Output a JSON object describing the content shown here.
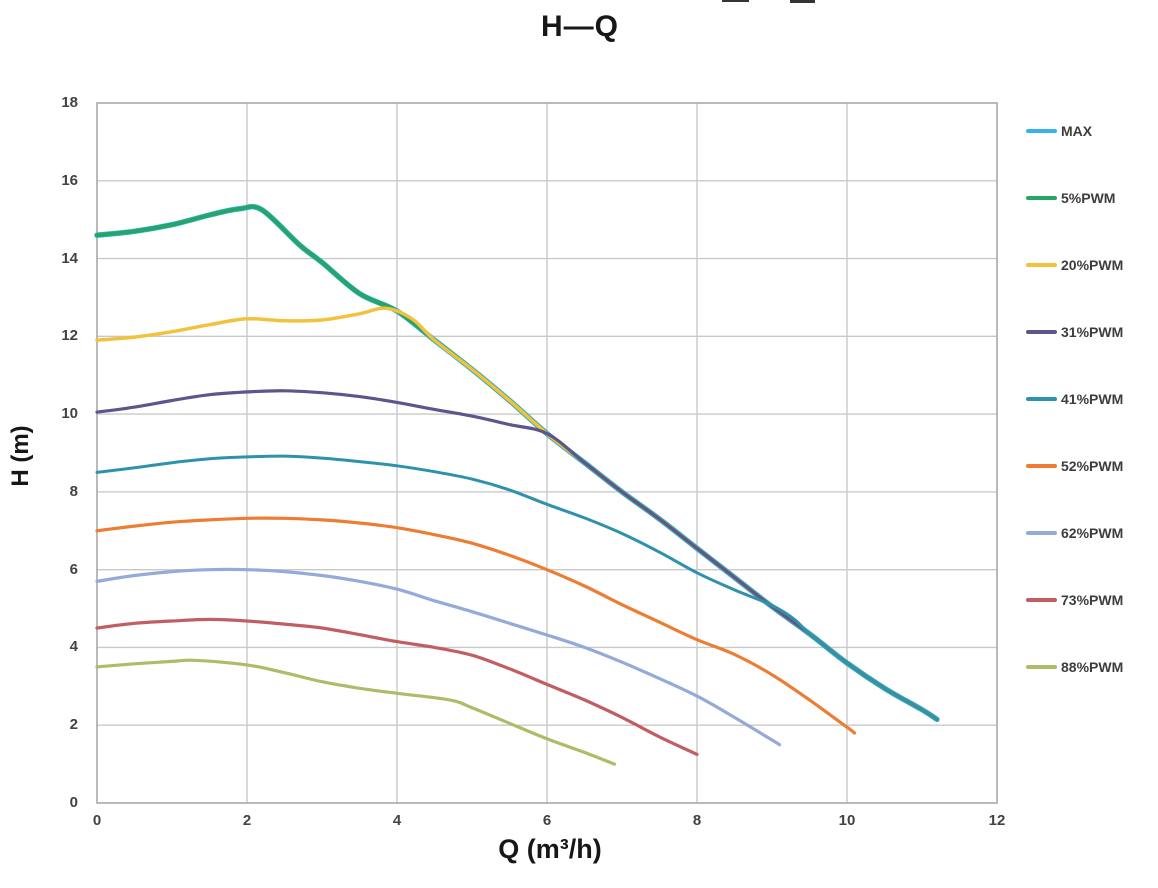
{
  "chart_data": {
    "type": "line",
    "title": "H—Q",
    "xlabel": "Q (m³/h)",
    "ylabel": "H (m)",
    "xlim": [
      0,
      12
    ],
    "ylim": [
      0,
      18
    ],
    "xticks": [
      0,
      2,
      4,
      6,
      8,
      10,
      12
    ],
    "yticks": [
      0,
      2,
      4,
      6,
      8,
      10,
      12,
      14,
      16,
      18
    ],
    "grid": true,
    "legend_position": "right",
    "colors": {
      "grid": "#c9c9c9",
      "border": "#a9a9a9",
      "tick_text": "#424242",
      "title_text": "#171717"
    },
    "series": [
      {
        "name": "MAX",
        "color": "#38b3e8",
        "points": [
          [
            0,
            14.6
          ],
          [
            0.5,
            14.7
          ],
          [
            1,
            14.87
          ],
          [
            1.5,
            15.12
          ],
          [
            1.9,
            15.28
          ],
          [
            2.2,
            15.25
          ],
          [
            2.7,
            14.35
          ],
          [
            3,
            13.9
          ],
          [
            3.5,
            13.1
          ],
          [
            4,
            12.65
          ],
          [
            4.5,
            11.9
          ],
          [
            5,
            11.15
          ],
          [
            5.5,
            10.35
          ],
          [
            6,
            9.5
          ],
          [
            6.5,
            8.75
          ],
          [
            7,
            8.0
          ],
          [
            7.5,
            7.3
          ],
          [
            8,
            6.55
          ],
          [
            8.5,
            5.8
          ],
          [
            9,
            5.05
          ],
          [
            9.5,
            4.35
          ],
          [
            10,
            3.6
          ],
          [
            10.5,
            2.95
          ],
          [
            11,
            2.4
          ],
          [
            11.2,
            2.15
          ]
        ]
      },
      {
        "name": "5%PWM",
        "color": "#26a567",
        "points": [
          [
            0,
            14.6
          ],
          [
            0.5,
            14.7
          ],
          [
            1,
            14.87
          ],
          [
            1.5,
            15.12
          ],
          [
            1.9,
            15.28
          ],
          [
            2.2,
            15.25
          ],
          [
            2.7,
            14.35
          ],
          [
            3,
            13.9
          ],
          [
            3.5,
            13.1
          ],
          [
            4,
            12.65
          ],
          [
            4.5,
            11.9
          ],
          [
            5,
            11.15
          ],
          [
            5.5,
            10.35
          ],
          [
            6,
            9.5
          ],
          [
            6.5,
            8.75
          ],
          [
            7,
            8.0
          ],
          [
            7.5,
            7.3
          ],
          [
            8,
            6.55
          ],
          [
            8.5,
            5.8
          ],
          [
            9,
            5.05
          ],
          [
            9.5,
            4.35
          ],
          [
            10,
            3.6
          ],
          [
            10.5,
            2.95
          ],
          [
            11,
            2.4
          ],
          [
            11.2,
            2.15
          ]
        ]
      },
      {
        "name": "20%PWM",
        "color": "#f2c23e",
        "points": [
          [
            0,
            11.9
          ],
          [
            0.5,
            11.98
          ],
          [
            1,
            12.12
          ],
          [
            1.5,
            12.3
          ],
          [
            2,
            12.45
          ],
          [
            2.5,
            12.4
          ],
          [
            3,
            12.42
          ],
          [
            3.5,
            12.58
          ],
          [
            3.85,
            12.72
          ],
          [
            4.2,
            12.45
          ],
          [
            4.5,
            11.9
          ],
          [
            5,
            11.15
          ],
          [
            5.5,
            10.35
          ],
          [
            6,
            9.5
          ],
          [
            6.5,
            8.75
          ],
          [
            7,
            8.0
          ],
          [
            7.5,
            7.3
          ],
          [
            8,
            6.55
          ],
          [
            8.5,
            5.8
          ],
          [
            9,
            5.05
          ],
          [
            9.5,
            4.35
          ],
          [
            10,
            3.6
          ],
          [
            10.5,
            2.95
          ],
          [
            11,
            2.4
          ],
          [
            11.2,
            2.15
          ]
        ]
      },
      {
        "name": "31%PWM",
        "color": "#5d568c",
        "points": [
          [
            0,
            10.05
          ],
          [
            0.5,
            10.18
          ],
          [
            1,
            10.35
          ],
          [
            1.5,
            10.5
          ],
          [
            2,
            10.57
          ],
          [
            2.5,
            10.6
          ],
          [
            3,
            10.55
          ],
          [
            3.5,
            10.45
          ],
          [
            4,
            10.3
          ],
          [
            4.5,
            10.12
          ],
          [
            5,
            9.95
          ],
          [
            5.5,
            9.73
          ],
          [
            6,
            9.5
          ],
          [
            6.5,
            8.75
          ],
          [
            7,
            8.0
          ],
          [
            7.5,
            7.3
          ],
          [
            8,
            6.55
          ],
          [
            8.5,
            5.8
          ],
          [
            9,
            5.05
          ],
          [
            9.5,
            4.35
          ],
          [
            10,
            3.6
          ],
          [
            10.5,
            2.95
          ],
          [
            11,
            2.4
          ],
          [
            11.2,
            2.15
          ]
        ]
      },
      {
        "name": "41%PWM",
        "color": "#2e92ac",
        "points": [
          [
            0,
            8.5
          ],
          [
            0.5,
            8.62
          ],
          [
            1,
            8.75
          ],
          [
            1.5,
            8.85
          ],
          [
            2,
            8.9
          ],
          [
            2.5,
            8.92
          ],
          [
            3,
            8.87
          ],
          [
            3.5,
            8.78
          ],
          [
            4,
            8.67
          ],
          [
            4.5,
            8.52
          ],
          [
            5,
            8.33
          ],
          [
            5.5,
            8.05
          ],
          [
            6,
            7.68
          ],
          [
            6.5,
            7.33
          ],
          [
            7,
            6.93
          ],
          [
            7.5,
            6.45
          ],
          [
            8,
            5.92
          ],
          [
            8.5,
            5.48
          ],
          [
            9,
            5.08
          ],
          [
            9.3,
            4.72
          ],
          [
            9.5,
            4.35
          ],
          [
            10,
            3.6
          ],
          [
            10.5,
            2.95
          ],
          [
            11,
            2.4
          ],
          [
            11.2,
            2.15
          ]
        ]
      },
      {
        "name": "52%PWM",
        "color": "#ec7d33",
        "points": [
          [
            0,
            7.0
          ],
          [
            0.5,
            7.12
          ],
          [
            1,
            7.22
          ],
          [
            1.5,
            7.28
          ],
          [
            2,
            7.32
          ],
          [
            2.5,
            7.32
          ],
          [
            3,
            7.28
          ],
          [
            3.5,
            7.2
          ],
          [
            4,
            7.08
          ],
          [
            4.5,
            6.9
          ],
          [
            5,
            6.68
          ],
          [
            5.5,
            6.37
          ],
          [
            6,
            6.0
          ],
          [
            6.5,
            5.58
          ],
          [
            7,
            5.1
          ],
          [
            7.5,
            4.65
          ],
          [
            8,
            4.2
          ],
          [
            8.5,
            3.82
          ],
          [
            9,
            3.3
          ],
          [
            9.5,
            2.65
          ],
          [
            10,
            1.95
          ],
          [
            10.1,
            1.8
          ]
        ]
      },
      {
        "name": "62%PWM",
        "color": "#94aad9",
        "points": [
          [
            0,
            5.7
          ],
          [
            0.5,
            5.85
          ],
          [
            1,
            5.95
          ],
          [
            1.5,
            6.0
          ],
          [
            2,
            6.0
          ],
          [
            2.5,
            5.95
          ],
          [
            3,
            5.85
          ],
          [
            3.5,
            5.7
          ],
          [
            4,
            5.5
          ],
          [
            4.5,
            5.2
          ],
          [
            5,
            4.92
          ],
          [
            5.5,
            4.62
          ],
          [
            6,
            4.32
          ],
          [
            6.5,
            4.0
          ],
          [
            7,
            3.62
          ],
          [
            7.5,
            3.2
          ],
          [
            8,
            2.75
          ],
          [
            8.5,
            2.2
          ],
          [
            9,
            1.62
          ],
          [
            9.1,
            1.5
          ]
        ]
      },
      {
        "name": "73%PWM",
        "color": "#c15e63",
        "points": [
          [
            0,
            4.5
          ],
          [
            0.5,
            4.62
          ],
          [
            1,
            4.68
          ],
          [
            1.5,
            4.72
          ],
          [
            2,
            4.68
          ],
          [
            2.5,
            4.6
          ],
          [
            3,
            4.5
          ],
          [
            3.5,
            4.33
          ],
          [
            4,
            4.15
          ],
          [
            4.5,
            4.0
          ],
          [
            5,
            3.8
          ],
          [
            5.5,
            3.45
          ],
          [
            6,
            3.05
          ],
          [
            6.5,
            2.65
          ],
          [
            7,
            2.2
          ],
          [
            7.5,
            1.7
          ],
          [
            8,
            1.25
          ]
        ]
      },
      {
        "name": "88%PWM",
        "color": "#afbb67",
        "points": [
          [
            0,
            3.5
          ],
          [
            0.5,
            3.58
          ],
          [
            1,
            3.64
          ],
          [
            1.3,
            3.67
          ],
          [
            2,
            3.55
          ],
          [
            2.5,
            3.35
          ],
          [
            3,
            3.12
          ],
          [
            3.5,
            2.95
          ],
          [
            4,
            2.82
          ],
          [
            4.7,
            2.65
          ],
          [
            5,
            2.45
          ],
          [
            5.5,
            2.05
          ],
          [
            6,
            1.65
          ],
          [
            6.5,
            1.3
          ],
          [
            6.9,
            1.0
          ]
        ]
      }
    ]
  }
}
